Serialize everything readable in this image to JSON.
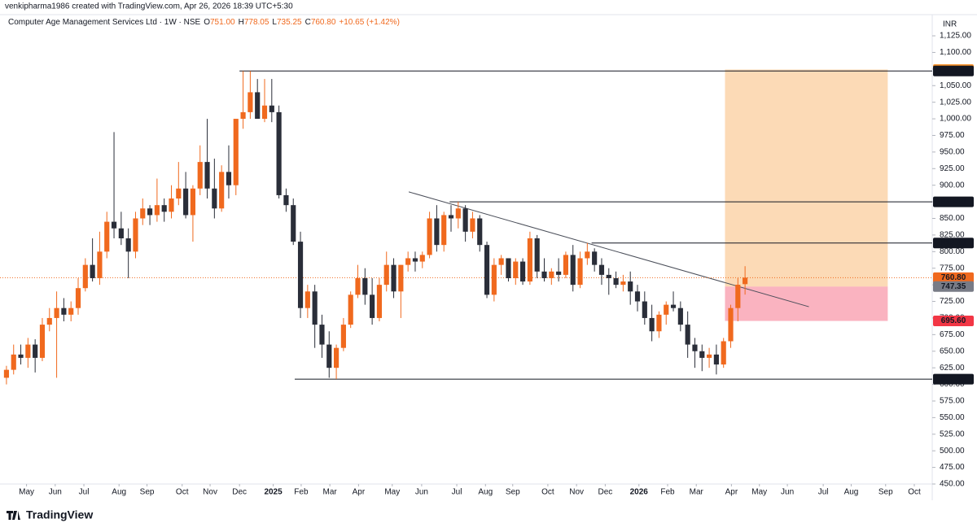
{
  "header": "venkipharma1986 created with TradingView.com, Apr 26, 2026 18:39 UTC+5:30",
  "brand": "TradingView",
  "chart_data": {
    "type": "candlestick",
    "title": "Computer Age Management Services Ltd · 1W · NSE",
    "legend": [
      {
        "key": "O",
        "text": "751.00"
      },
      {
        "key": "H",
        "text": "778.05"
      },
      {
        "key": "L",
        "text": "735.25"
      },
      {
        "key": "C",
        "text": "760.80"
      },
      {
        "key": "",
        "text": "+10.65 (+1.42%)"
      }
    ],
    "currency": "INR",
    "up_color": "#f0691e",
    "down_color": "#2a2e39",
    "candles": [
      [
        610,
        628,
        600,
        622
      ],
      [
        622,
        660,
        615,
        645
      ],
      [
        645,
        660,
        630,
        640
      ],
      [
        640,
        670,
        625,
        660
      ],
      [
        660,
        668,
        618,
        640
      ],
      [
        640,
        700,
        635,
        690
      ],
      [
        690,
        715,
        680,
        700
      ],
      [
        700,
        740,
        610,
        715
      ],
      [
        715,
        730,
        695,
        705
      ],
      [
        705,
        725,
        695,
        715
      ],
      [
        715,
        760,
        705,
        745
      ],
      [
        745,
        790,
        740,
        780
      ],
      [
        780,
        820,
        755,
        760
      ],
      [
        760,
        830,
        750,
        800
      ],
      [
        800,
        860,
        790,
        845
      ],
      [
        845,
        980,
        820,
        835
      ],
      [
        835,
        860,
        810,
        820
      ],
      [
        820,
        835,
        760,
        800
      ],
      [
        800,
        860,
        790,
        850
      ],
      [
        850,
        880,
        840,
        865
      ],
      [
        865,
        870,
        840,
        855
      ],
      [
        855,
        910,
        845,
        870
      ],
      [
        870,
        880,
        845,
        860
      ],
      [
        860,
        900,
        850,
        880
      ],
      [
        880,
        935,
        870,
        895
      ],
      [
        895,
        920,
        850,
        855
      ],
      [
        855,
        900,
        815,
        895
      ],
      [
        895,
        960,
        885,
        935
      ],
      [
        935,
        1000,
        880,
        895
      ],
      [
        895,
        940,
        850,
        865
      ],
      [
        865,
        930,
        860,
        920
      ],
      [
        920,
        960,
        880,
        900
      ],
      [
        900,
        1000,
        885,
        1000
      ],
      [
        1000,
        1072,
        985,
        1010
      ],
      [
        1010,
        1072,
        1000,
        1040
      ],
      [
        1040,
        1060,
        1005,
        1000
      ],
      [
        1000,
        1060,
        995,
        1020
      ],
      [
        1020,
        1060,
        995,
        1010
      ],
      [
        1010,
        1020,
        880,
        885
      ],
      [
        885,
        895,
        860,
        870
      ],
      [
        870,
        880,
        810,
        815
      ],
      [
        815,
        830,
        700,
        715
      ],
      [
        715,
        750,
        700,
        740
      ],
      [
        740,
        750,
        655,
        690
      ],
      [
        690,
        705,
        640,
        660
      ],
      [
        660,
        680,
        610,
        625
      ],
      [
        625,
        660,
        608,
        655
      ],
      [
        655,
        700,
        650,
        690
      ],
      [
        690,
        740,
        685,
        735
      ],
      [
        735,
        780,
        730,
        760
      ],
      [
        760,
        775,
        720,
        735
      ],
      [
        735,
        760,
        690,
        700
      ],
      [
        700,
        760,
        695,
        750
      ],
      [
        750,
        800,
        740,
        780
      ],
      [
        780,
        790,
        730,
        740
      ],
      [
        740,
        780,
        700,
        780
      ],
      [
        780,
        800,
        770,
        790
      ],
      [
        790,
        800,
        770,
        785
      ],
      [
        785,
        800,
        775,
        795
      ],
      [
        795,
        860,
        790,
        850
      ],
      [
        850,
        870,
        800,
        810
      ],
      [
        810,
        860,
        800,
        855
      ],
      [
        855,
        870,
        830,
        850
      ],
      [
        850,
        875,
        835,
        865
      ],
      [
        865,
        870,
        815,
        830
      ],
      [
        830,
        860,
        820,
        850
      ],
      [
        850,
        855,
        800,
        810
      ],
      [
        810,
        815,
        730,
        735
      ],
      [
        735,
        790,
        725,
        780
      ],
      [
        780,
        795,
        765,
        790
      ],
      [
        790,
        790,
        755,
        760
      ],
      [
        760,
        790,
        750,
        785
      ],
      [
        785,
        790,
        750,
        755
      ],
      [
        755,
        830,
        750,
        820
      ],
      [
        820,
        825,
        760,
        770
      ],
      [
        770,
        790,
        755,
        760
      ],
      [
        760,
        775,
        750,
        770
      ],
      [
        770,
        790,
        755,
        765
      ],
      [
        765,
        800,
        760,
        795
      ],
      [
        795,
        810,
        740,
        750
      ],
      [
        750,
        800,
        745,
        790
      ],
      [
        790,
        813,
        780,
        800
      ],
      [
        800,
        805,
        770,
        780
      ],
      [
        780,
        790,
        750,
        765
      ],
      [
        765,
        775,
        735,
        760
      ],
      [
        760,
        770,
        745,
        750
      ],
      [
        750,
        765,
        740,
        755
      ],
      [
        755,
        770,
        720,
        740
      ],
      [
        740,
        750,
        710,
        725
      ],
      [
        725,
        740,
        690,
        700
      ],
      [
        700,
        720,
        665,
        680
      ],
      [
        680,
        710,
        670,
        705
      ],
      [
        705,
        725,
        690,
        720
      ],
      [
        720,
        740,
        710,
        715
      ],
      [
        715,
        725,
        680,
        690
      ],
      [
        690,
        710,
        640,
        660
      ],
      [
        660,
        670,
        625,
        650
      ],
      [
        650,
        660,
        620,
        640
      ],
      [
        640,
        655,
        625,
        645
      ],
      [
        645,
        660,
        615,
        630
      ],
      [
        630,
        670,
        625,
        665
      ],
      [
        665,
        720,
        655,
        715
      ],
      [
        715,
        760,
        695,
        750.15
      ],
      [
        751,
        778.05,
        735.25,
        760.8
      ]
    ],
    "xlim": [
      -0.9,
      129.1
    ],
    "xticks": [
      {
        "value": 2.8,
        "label": "May"
      },
      {
        "value": 6.8,
        "label": "Jun"
      },
      {
        "value": 10.8,
        "label": "Jul"
      },
      {
        "value": 15.7,
        "label": "Aug"
      },
      {
        "value": 19.6,
        "label": "Sep"
      },
      {
        "value": 24.5,
        "label": "Oct"
      },
      {
        "value": 28.4,
        "label": "Nov"
      },
      {
        "value": 32.5,
        "label": "Dec"
      },
      {
        "value": 37.2,
        "label": "2025"
      },
      {
        "value": 41.1,
        "label": "Feb"
      },
      {
        "value": 45.1,
        "label": "Mar"
      },
      {
        "value": 49.1,
        "label": "Apr"
      },
      {
        "value": 53.8,
        "label": "May"
      },
      {
        "value": 57.9,
        "label": "Jun"
      },
      {
        "value": 62.8,
        "label": "Jul"
      },
      {
        "value": 66.8,
        "label": "Aug"
      },
      {
        "value": 70.6,
        "label": "Sep"
      },
      {
        "value": 75.5,
        "label": "Oct"
      },
      {
        "value": 79.5,
        "label": "Nov"
      },
      {
        "value": 83.5,
        "label": "Dec"
      },
      {
        "value": 88.2,
        "label": "2026"
      },
      {
        "value": 92.2,
        "label": "Feb"
      },
      {
        "value": 96.2,
        "label": "Mar"
      },
      {
        "value": 101.1,
        "label": "Apr"
      },
      {
        "value": 105,
        "label": "May"
      },
      {
        "value": 108.9,
        "label": "Jun"
      },
      {
        "value": 113.9,
        "label": "Jul"
      },
      {
        "value": 117.8,
        "label": "Aug"
      },
      {
        "value": 122.6,
        "label": "Sep"
      },
      {
        "value": 126.6,
        "label": "Oct"
      }
    ],
    "ylim": [
      450,
      1156.9
    ],
    "yticks": [
      {
        "value": 450,
        "label": "450.00"
      },
      {
        "value": 475,
        "label": "475.00"
      },
      {
        "value": 500,
        "label": "500.00"
      },
      {
        "value": 525,
        "label": "525.00"
      },
      {
        "value": 550,
        "label": "550.00"
      },
      {
        "value": 575,
        "label": "575.00"
      },
      {
        "value": 600,
        "label": "600.00"
      },
      {
        "value": 625,
        "label": "625.00"
      },
      {
        "value": 650,
        "label": "650.00"
      },
      {
        "value": 675,
        "label": "675.00"
      },
      {
        "value": 700,
        "label": "700.00"
      },
      {
        "value": 725,
        "label": "725.00"
      },
      {
        "value": 750,
        "label": "750.00"
      },
      {
        "value": 775,
        "label": "775.00"
      },
      {
        "value": 800,
        "label": "800.00"
      },
      {
        "value": 825,
        "label": "825.00"
      },
      {
        "value": 850,
        "label": "850.00"
      },
      {
        "value": 875,
        "label": "875.00"
      },
      {
        "value": 900,
        "label": "900.00"
      },
      {
        "value": 925,
        "label": "925.00"
      },
      {
        "value": 950,
        "label": "950.00"
      },
      {
        "value": 975,
        "label": "975.00"
      },
      {
        "value": 1000,
        "label": "1,000.00"
      },
      {
        "value": 1025,
        "label": "1,025.00"
      },
      {
        "value": 1050,
        "label": "1,050.00"
      },
      {
        "value": 1075,
        "label": "1,075.00"
      },
      {
        "value": 1100,
        "label": "1,100.00"
      },
      {
        "value": 1125,
        "label": "1,125.00"
      }
    ],
    "hlines": [
      {
        "from": 32.5,
        "value": 1072.1,
        "label": "1,072.10"
      },
      {
        "from": 61.8,
        "value": 875,
        "label": "875.00"
      },
      {
        "from": 81.6,
        "value": 813,
        "label": "813.00"
      },
      {
        "from": 40.2,
        "value": 607.95,
        "label": "607.95"
      }
    ],
    "trendline": {
      "x": [
        56.1,
        111.9
      ],
      "y": [
        890,
        717
      ]
    },
    "last_price": {
      "value": 760.8,
      "label": "760.80"
    },
    "position": {
      "from": 100.2,
      "to": 122.9,
      "target": {
        "value": 1074.25,
        "label": "1,074.25"
      },
      "entry": {
        "value": 747.35,
        "label": "747.35"
      },
      "stop": {
        "value": 695.6,
        "label": "695.60"
      }
    }
  }
}
